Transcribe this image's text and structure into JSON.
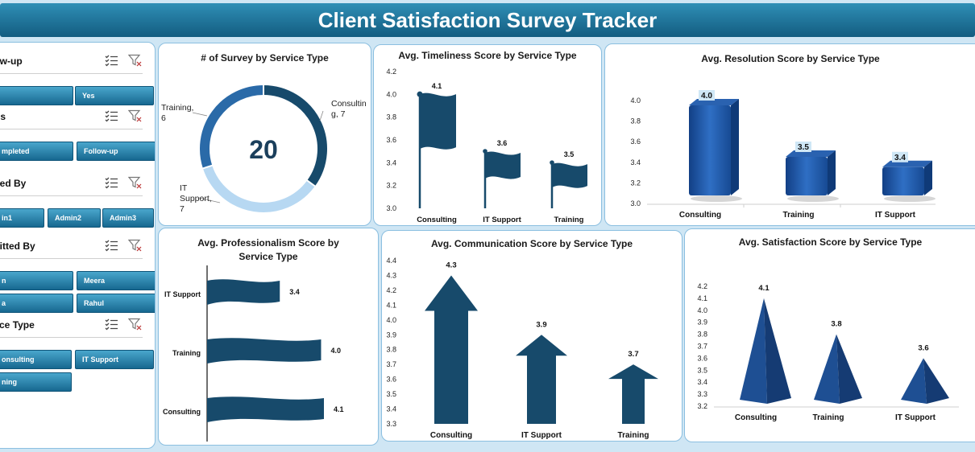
{
  "header": {
    "title": "Client Satisfaction Survey Tracker"
  },
  "slicers": [
    {
      "title": "low-up",
      "buttons": [
        "",
        "Yes"
      ]
    },
    {
      "title": "tus",
      "buttons": [
        "mpleted",
        "Follow-up"
      ]
    },
    {
      "title": "ated By",
      "buttons": [
        "in1",
        "Admin2",
        "Admin3"
      ]
    },
    {
      "title": "mitted By",
      "buttons": [
        "n",
        "Meera",
        "a",
        "Rahul"
      ]
    },
    {
      "title": "vice Type",
      "buttons": [
        "onsulting",
        "IT Support",
        "ning"
      ]
    }
  ],
  "colors": {
    "navy": "#174a6b",
    "blue": "#1e5aa8",
    "light": "#a9d0f0",
    "header": "#1e7aa6"
  },
  "charts": {
    "survey_count": {
      "title": "# of Survey  by Service Type",
      "center_value": "20",
      "chart_data": {
        "type": "pie",
        "categories": [
          "Consulting",
          "IT Support",
          "Training"
        ],
        "values": [
          7,
          7,
          6
        ],
        "labels": [
          "Consultin g, 7",
          "IT Support, 7",
          "Training, 6"
        ]
      }
    },
    "timeliness": {
      "title": "Avg. Timeliness Score by Service Type",
      "chart_data": {
        "type": "bar",
        "categories": [
          "Consulting",
          "IT Support",
          "Training"
        ],
        "values": [
          4.1,
          3.6,
          3.5
        ],
        "ylim": [
          3.0,
          4.2
        ],
        "yticks": [
          "3.0",
          "3.2",
          "3.4",
          "3.6",
          "3.8",
          "4.0",
          "4.2"
        ]
      }
    },
    "resolution": {
      "title": "Avg. Resolution Score by Service Type",
      "chart_data": {
        "type": "bar",
        "categories": [
          "Consulting",
          "Training",
          "IT Support"
        ],
        "values": [
          4.0,
          3.5,
          3.4
        ],
        "ylim": [
          3.0,
          4.0
        ],
        "yticks": [
          "3.0",
          "3.2",
          "3.4",
          "3.6",
          "3.8",
          "4.0"
        ]
      }
    },
    "professionalism": {
      "title_line1": "Avg. Professionalism Score by",
      "title_line2": "Service Type",
      "chart_data": {
        "type": "bar",
        "categories": [
          "IT Support",
          "Training",
          "Consulting"
        ],
        "values": [
          3.4,
          4.0,
          4.1
        ]
      }
    },
    "communication": {
      "title": "Avg. Communication Score by Service Type",
      "chart_data": {
        "type": "bar",
        "categories": [
          "Consulting",
          "IT Support",
          "Training"
        ],
        "values": [
          4.3,
          3.9,
          3.7
        ],
        "ylim": [
          3.3,
          4.4
        ],
        "yticks": [
          "3.3",
          "3.4",
          "3.5",
          "3.6",
          "3.7",
          "3.8",
          "3.9",
          "4.0",
          "4.1",
          "4.2",
          "4.3",
          "4.4"
        ]
      }
    },
    "satisfaction": {
      "title": "Avg. Satisfaction Score by Service Type",
      "chart_data": {
        "type": "bar",
        "categories": [
          "Consulting",
          "Training",
          "IT Support"
        ],
        "values": [
          4.1,
          3.8,
          3.6
        ],
        "ylim": [
          3.2,
          4.2
        ],
        "yticks": [
          "3.2",
          "3.3",
          "3.4",
          "3.5",
          "3.6",
          "3.7",
          "3.8",
          "3.9",
          "4.0",
          "4.1",
          "4.2"
        ]
      }
    }
  }
}
